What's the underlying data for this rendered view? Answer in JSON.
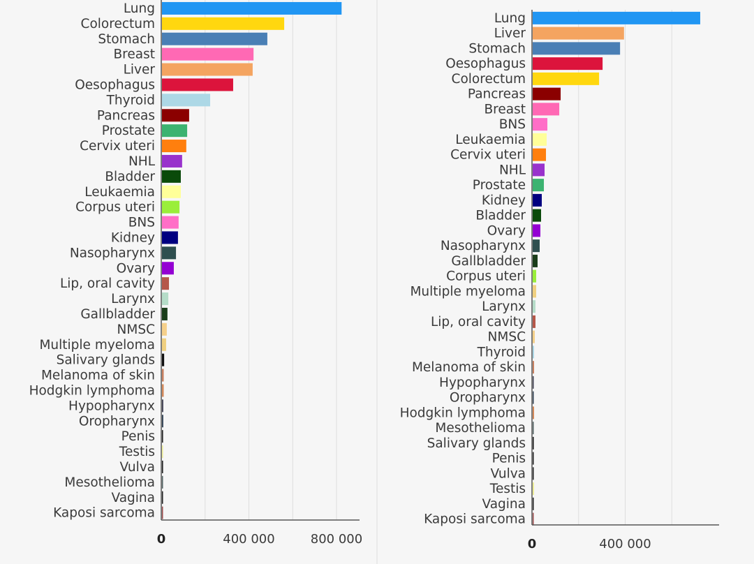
{
  "chart_data": [
    {
      "type": "bar",
      "orientation": "horizontal",
      "title": "",
      "xlabel": "",
      "ylabel": "",
      "xlim": [
        0,
        900000
      ],
      "xticks": [
        0,
        400000,
        800000
      ],
      "xtick_labels": [
        "0",
        "400 000",
        "800 000"
      ],
      "grid": true,
      "categories": [
        "Lung",
        "Colorectum",
        "Stomach",
        "Breast",
        "Liver",
        "Oesophagus",
        "Thyroid",
        "Pancreas",
        "Prostate",
        "Cervix uteri",
        "NHL",
        "Bladder",
        "Leukaemia",
        "Corpus uteri",
        "BNS",
        "Kidney",
        "Nasopharynx",
        "Ovary",
        "Lip, oral cavity",
        "Larynx",
        "Gallbladder",
        "NMSC",
        "Multiple myeloma",
        "Salivary glands",
        "Melanoma of skin",
        "Hodgkin lymphoma",
        "Hypopharynx",
        "Oropharynx",
        "Penis",
        "Testis",
        "Vulva",
        "Mesothelioma",
        "Vagina",
        "Kaposi sarcoma"
      ],
      "values": [
        820000,
        558000,
        481000,
        418000,
        414000,
        325000,
        220000,
        124000,
        115000,
        111000,
        92000,
        86000,
        86000,
        80000,
        76000,
        73000,
        64000,
        54000,
        32000,
        29000,
        25000,
        22000,
        19000,
        10000,
        8000,
        8000,
        6000,
        6000,
        5000,
        5000,
        5000,
        3000,
        3000,
        1000
      ]
    },
    {
      "type": "bar",
      "orientation": "horizontal",
      "title": "",
      "xlabel": "",
      "ylabel": "",
      "xlim": [
        0,
        800000
      ],
      "xticks": [
        0,
        400000
      ],
      "xtick_labels": [
        "0",
        "400 000"
      ],
      "grid": true,
      "categories": [
        "Lung",
        "Liver",
        "Stomach",
        "Oesophagus",
        "Colorectum",
        "Pancreas",
        "Breast",
        "BNS",
        "Leukaemia",
        "Cervix uteri",
        "NHL",
        "Prostate",
        "Kidney",
        "Bladder",
        "Ovary",
        "Nasopharynx",
        "Gallbladder",
        "Corpus uteri",
        "Multiple myeloma",
        "Larynx",
        "Lip, oral cavity",
        "NMSC",
        "Thyroid",
        "Melanoma of skin",
        "Hypopharynx",
        "Oropharynx",
        "Hodgkin lymphoma",
        "Mesothelioma",
        "Salivary glands",
        "Penis",
        "Vulva",
        "Testis",
        "Vagina",
        "Kaposi sarcoma"
      ],
      "values": [
        719000,
        392000,
        375000,
        300000,
        285000,
        120000,
        114000,
        63000,
        60000,
        57000,
        51000,
        48000,
        39000,
        36000,
        33000,
        30000,
        21000,
        15000,
        15000,
        12000,
        12000,
        9000,
        6000,
        6000,
        4000,
        4000,
        6000,
        4000,
        4000,
        4000,
        4000,
        6000,
        4000,
        1000
      ]
    }
  ],
  "colors": {
    "Lung": "#2196f3",
    "Colorectum": "#ffd70f",
    "Stomach": "#4a7fb5",
    "Breast": "#ff69b4",
    "Liver": "#f4a460",
    "Oesophagus": "#dc143c",
    "Thyroid": "#add8e6",
    "Pancreas": "#8b0000",
    "Prostate": "#3cb371",
    "Cervix uteri": "#ff7f0e",
    "NHL": "#9932cc",
    "Bladder": "#0a4a0a",
    "Leukaemia": "#ffff99",
    "Corpus uteri": "#9aee3a",
    "BNS": "#ff6ec7",
    "Kidney": "#000080",
    "Nasopharynx": "#2f4f4f",
    "Ovary": "#9400d3",
    "Lip, oral cavity": "#b5584a",
    "Larynx": "#b5dcc8",
    "Gallbladder": "#1a3d1a",
    "NMSC": "#f5d08a",
    "Multiple myeloma": "#f0d080",
    "Salivary glands": "#111111",
    "Melanoma of skin": "#c88060",
    "Hodgkin lymphoma": "#d4895a",
    "Hypopharynx": "#444455",
    "Oropharynx": "#334455",
    "Penis": "#222222",
    "Testis": "#eeee99",
    "Vulva": "#222222",
    "Mesothelioma": "#556666",
    "Vagina": "#222222",
    "Kaposi sarcoma": "#a05050"
  }
}
